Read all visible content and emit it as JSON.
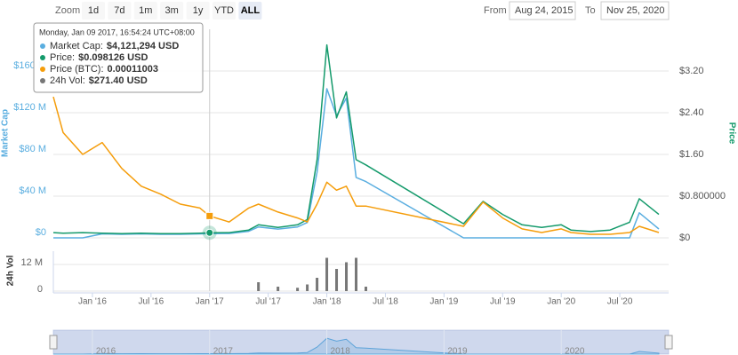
{
  "toolbar": {
    "zoom_label": "Zoom",
    "buttons": [
      "1d",
      "7d",
      "1m",
      "3m",
      "1y",
      "YTD",
      "ALL"
    ],
    "selected": 6
  },
  "range": {
    "from_label": "From",
    "from": "Aug 24, 2015",
    "to_label": "To",
    "to": "Nov 25, 2020"
  },
  "tooltip": {
    "date": "Monday, Jan 09 2017, 16:54:24 UTC+08:00",
    "rows": [
      {
        "label": "Market Cap:",
        "text": "$4,121,294 USD"
      },
      {
        "label": "Price:",
        "text": "$0.098126 USD"
      },
      {
        "label": "Price (BTC):",
        "text": "0.00011003"
      },
      {
        "label": "24h Vol:",
        "text": "$271.40 USD"
      }
    ]
  },
  "chart_data": {
    "type": "line",
    "x": [
      "2015-09",
      "2015-10",
      "2015-12",
      "2016-02",
      "2016-04",
      "2016-06",
      "2016-08",
      "2016-10",
      "2016-12",
      "2017-01",
      "2017-03",
      "2017-05",
      "2017-06",
      "2017-08",
      "2017-10",
      "2017-11",
      "2017-12",
      "2018-01",
      "2018-02",
      "2018-03",
      "2018-04",
      "2018-05",
      "2019-03",
      "2019-05",
      "2019-07",
      "2019-09",
      "2019-11",
      "2020-01",
      "2020-02",
      "2020-04",
      "2020-06",
      "2020-08",
      "2020-09",
      "2020-11"
    ],
    "xlim": [
      "2015-09",
      "2020-12"
    ],
    "xticks": [
      {
        "value": "2016-01",
        "label": "Jan '16"
      },
      {
        "value": "2016-07",
        "label": "Jul '16"
      },
      {
        "value": "2017-01",
        "label": "Jan '17"
      },
      {
        "value": "2017-07",
        "label": "Jul '17"
      },
      {
        "value": "2018-01",
        "label": "Jan '18"
      },
      {
        "value": "2018-07",
        "label": "Jul '18"
      },
      {
        "value": "2019-01",
        "label": "Jan '19"
      },
      {
        "value": "2019-07",
        "label": "Jul '19"
      },
      {
        "value": "2020-01",
        "label": "Jan '20"
      },
      {
        "value": "2020-07",
        "label": "Jul '20"
      }
    ],
    "y_label": "Market Cap",
    "ylim": [
      0,
      200000000
    ],
    "yticks": [
      {
        "value": 0,
        "label": "$0"
      },
      {
        "value": 40000000,
        "label": "$40 M"
      },
      {
        "value": 80000000,
        "label": "$80 M"
      },
      {
        "value": 120000000,
        "label": "$120 M"
      },
      {
        "value": 160000000,
        "label": "$160 M"
      }
    ],
    "y2_label": "Price",
    "y2lim": [
      0,
      4
    ],
    "y2ticks": [
      {
        "value": 0,
        "label": "$0"
      },
      {
        "value": 0.8,
        "label": "$0.800000"
      },
      {
        "value": 1.6,
        "label": "$1.60"
      },
      {
        "value": 2.4,
        "label": "$2.40"
      },
      {
        "value": 3.2,
        "label": "$3.20"
      }
    ],
    "y3lim": [
      0,
      0.00105
    ],
    "grid": true,
    "series": [
      {
        "color": "#5aaee0",
        "axis": "y",
        "values": [
          0,
          0,
          0,
          3800000,
          3400000,
          3800000,
          3400000,
          3400000,
          3800000,
          4121294,
          4200000,
          6300000,
          10500000,
          8400000,
          10500000,
          14700000,
          63000000,
          143000000,
          117000000,
          134000000,
          58000000,
          54000000,
          0,
          0,
          0,
          0,
          0,
          0,
          0,
          0,
          0,
          0,
          24000000,
          8500000
        ]
      },
      {
        "color": "#149a6b",
        "axis": "y2",
        "values": [
          0.1,
          0.09,
          0.1,
          0.09,
          0.08,
          0.09,
          0.08,
          0.08,
          0.09,
          0.098126,
          0.1,
          0.15,
          0.25,
          0.2,
          0.25,
          0.35,
          1.5,
          3.7,
          2.3,
          2.8,
          1.5,
          1.4,
          0.27,
          0.7,
          0.45,
          0.25,
          0.2,
          0.25,
          0.15,
          0.12,
          0.15,
          0.3,
          0.75,
          0.45
        ]
      },
      {
        "color": "#f59d0b",
        "axis": "y3",
        "values": [
          0.00071,
          0.00053,
          0.00042,
          0.00048,
          0.00035,
          0.00026,
          0.00022,
          0.00017,
          0.00015,
          0.00011003,
          8e-05,
          0.00015,
          0.00017,
          0.00013,
          0.0001,
          8e-05,
          0.00017,
          0.00028,
          0.00024,
          0.00026,
          0.00016,
          0.00016,
          5.8e-05,
          0.00018,
          0.0001,
          4.5e-05,
          2.7e-05,
          4.5e-05,
          2.7e-05,
          1.8e-05,
          1.8e-05,
          2.7e-05,
          5.8e-05,
          2.7e-05
        ]
      }
    ],
    "volume": {
      "label": "24h Vol",
      "color": "#777777",
      "ylim": [
        0,
        18000000
      ],
      "yticks": [
        0,
        {
          "value": 12000000,
          "label": "12 M"
        }
      ],
      "values": [
        0,
        0,
        0,
        0,
        0,
        0,
        0,
        0,
        0,
        271.4,
        0,
        0,
        4000000,
        2000000,
        1500000,
        3000000,
        6000000,
        15000000,
        10000000,
        13000000,
        15000000,
        2000000,
        0,
        0,
        0,
        0,
        0,
        0,
        0,
        0,
        0,
        0,
        0,
        0
      ]
    },
    "navigator": {
      "xticks": [
        {
          "value": "2016-01",
          "label": "2016"
        },
        {
          "value": "2017-01",
          "label": "2017"
        },
        {
          "value": "2018-01",
          "label": "2018"
        },
        {
          "value": "2019-01",
          "label": "2019"
        },
        {
          "value": "2020-01",
          "label": "2020"
        }
      ]
    }
  }
}
